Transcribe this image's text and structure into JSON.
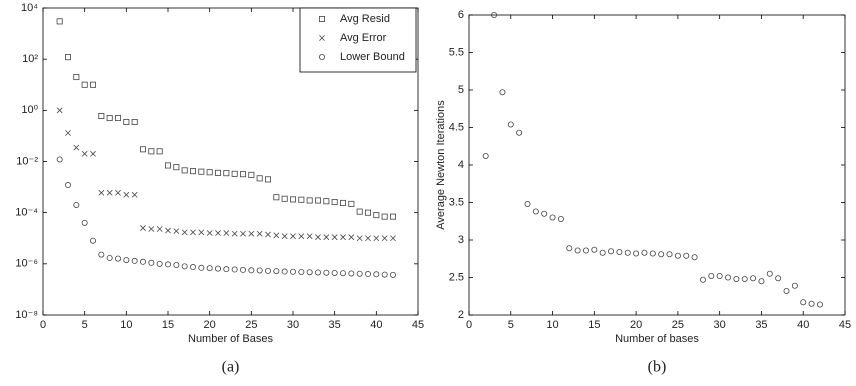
{
  "chart_data": [
    {
      "type": "scatter",
      "log_y": true,
      "caption": "(a)",
      "x_label": "Number of Bases",
      "legend": "upper right",
      "x": [
        2,
        3,
        4,
        5,
        6,
        7,
        8,
        9,
        10,
        11,
        12,
        13,
        14,
        15,
        16,
        17,
        18,
        19,
        20,
        21,
        22,
        23,
        24,
        25,
        26,
        27,
        28,
        29,
        30,
        31,
        32,
        33,
        34,
        35,
        36,
        37,
        38,
        39,
        40,
        41,
        42
      ],
      "xlim": [
        0,
        45
      ],
      "xticks": [
        0,
        5,
        10,
        15,
        20,
        25,
        30,
        35,
        40,
        45
      ],
      "ylim": [
        1e-08,
        10000
      ],
      "yticks": [
        {
          "value": 1e-08,
          "label": "10⁻⁸"
        },
        {
          "value": 1e-06,
          "label": "10⁻⁶"
        },
        {
          "value": 0.0001,
          "label": "10⁻⁴"
        },
        {
          "value": 0.01,
          "label": "10⁻²"
        },
        {
          "value": 1,
          "label": "10⁰"
        },
        {
          "value": 100,
          "label": "10²"
        },
        {
          "value": 10000,
          "label": "10⁴"
        }
      ],
      "series": [
        {
          "name": "Avg Resid",
          "marker": "square",
          "color": "#444444",
          "values": [
            3000,
            120,
            20,
            10,
            10,
            0.6,
            0.5,
            0.5,
            0.35,
            0.35,
            0.03,
            0.025,
            0.025,
            0.007,
            0.006,
            0.0045,
            0.0042,
            0.004,
            0.0038,
            0.0036,
            0.0035,
            0.0033,
            0.0032,
            0.003,
            0.0022,
            0.002,
            0.0004,
            0.00035,
            0.00033,
            0.00032,
            0.0003,
            0.0003,
            0.00028,
            0.00026,
            0.00024,
            0.00022,
            0.00011,
            0.0001,
            8e-05,
            7e-05,
            7e-05
          ]
        },
        {
          "name": "Avg Error",
          "marker": "x",
          "color": "#444444",
          "values": [
            1,
            0.13,
            0.035,
            0.02,
            0.02,
            0.0006,
            0.0006,
            0.0006,
            0.0005,
            0.0005,
            2.5e-05,
            2.3e-05,
            2.3e-05,
            2e-05,
            1.9e-05,
            1.7e-05,
            1.7e-05,
            1.7e-05,
            1.6e-05,
            1.6e-05,
            1.6e-05,
            1.5e-05,
            1.5e-05,
            1.5e-05,
            1.5e-05,
            1.4e-05,
            1.3e-05,
            1.2e-05,
            1.2e-05,
            1.2e-05,
            1.2e-05,
            1.1e-05,
            1.1e-05,
            1.1e-05,
            1.1e-05,
            1.1e-05,
            1e-05,
            1e-05,
            1e-05,
            1e-05,
            1e-05
          ]
        },
        {
          "name": "Lower Bound",
          "marker": "circle",
          "color": "#444444",
          "values": [
            0.012,
            0.0012,
            0.0002,
            4e-05,
            8e-06,
            2.3e-06,
            1.7e-06,
            1.6e-06,
            1.4e-06,
            1.3e-06,
            1.2e-06,
            1.1e-06,
            1e-06,
            9.5e-07,
            9e-07,
            8e-07,
            7.5e-07,
            7e-07,
            6.8e-07,
            6.5e-07,
            6.2e-07,
            6e-07,
            5.8e-07,
            5.6e-07,
            5.5e-07,
            5.3e-07,
            5.2e-07,
            5e-07,
            4.9e-07,
            4.8e-07,
            4.7e-07,
            4.6e-07,
            4.5e-07,
            4.4e-07,
            4.3e-07,
            4.2e-07,
            4.1e-07,
            4e-07,
            3.9e-07,
            3.8e-07,
            3.7e-07
          ]
        }
      ]
    },
    {
      "type": "scatter",
      "caption": "(b)",
      "x_label": "Number of bases",
      "y_label": "Average Newton Iterations",
      "x": [
        2,
        3,
        4,
        5,
        6,
        7,
        8,
        9,
        10,
        11,
        12,
        13,
        14,
        15,
        16,
        17,
        18,
        19,
        20,
        21,
        22,
        23,
        24,
        25,
        26,
        27,
        28,
        29,
        30,
        31,
        32,
        33,
        34,
        35,
        36,
        37,
        38,
        39,
        40,
        41,
        42
      ],
      "xlim": [
        0,
        45
      ],
      "xticks": [
        0,
        5,
        10,
        15,
        20,
        25,
        30,
        35,
        40,
        45
      ],
      "ylim": [
        2,
        6
      ],
      "yticks": [
        2,
        2.5,
        3,
        3.5,
        4,
        4.5,
        5,
        5.5,
        6
      ],
      "series": [
        {
          "marker": "circle",
          "color": "#444444",
          "values": [
            4.12,
            6.0,
            4.97,
            4.54,
            4.43,
            3.48,
            3.38,
            3.35,
            3.3,
            3.28,
            2.89,
            2.86,
            2.86,
            2.87,
            2.83,
            2.85,
            2.84,
            2.83,
            2.82,
            2.83,
            2.82,
            2.81,
            2.81,
            2.79,
            2.79,
            2.77,
            2.47,
            2.52,
            2.52,
            2.5,
            2.48,
            2.48,
            2.49,
            2.45,
            2.55,
            2.49,
            2.32,
            2.39,
            2.17,
            2.15,
            2.14
          ]
        }
      ]
    }
  ]
}
